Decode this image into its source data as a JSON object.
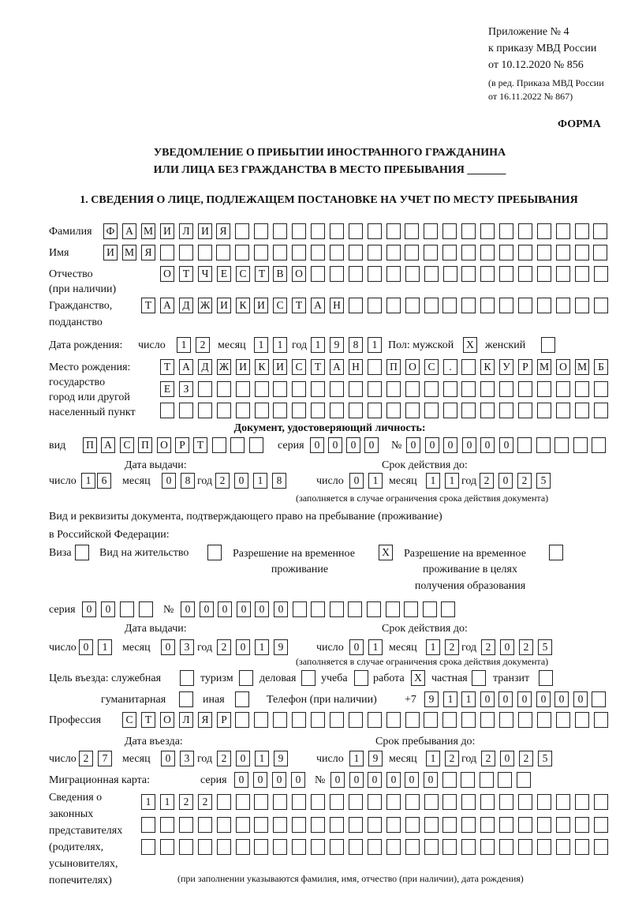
{
  "header": {
    "appendix": "Приложение № 4",
    "order": "к приказу МВД России",
    "order_date": "от 10.12.2020 № 856",
    "revision_1": "(в ред. Приказа МВД России",
    "revision_2": "от 16.11.2022 № 867)",
    "form_label": "ФОРМА",
    "title_1": "УВЕДОМЛЕНИЕ О ПРИБЫТИИ ИНОСТРАННОГО ГРАЖДАНИНА",
    "title_2": "ИЛИ ЛИЦА БЕЗ ГРАЖДАНСТВА В МЕСТО ПРЕБЫВАНИЯ _______",
    "section_1": "1. СВЕДЕНИЯ О ЛИЦЕ, ПОДЛЕЖАЩЕМ ПОСТАНОВКЕ НА УЧЕТ ПО МЕСТУ ПРЕБЫВАНИЯ"
  },
  "labels": {
    "surname": "Фамилия",
    "name": "Имя",
    "patronymic_1": "Отчество",
    "patronymic_2": "(при наличии)",
    "citizenship_1": "Гражданство,",
    "citizenship_2": "подданство",
    "dob": "Дата рождения:",
    "day": "число",
    "month": "месяц",
    "year": "год",
    "sex": "Пол: мужской",
    "female": "женский",
    "pob_1": "Место рождения:",
    "pob_2": "государство",
    "pob_3": "город или другой",
    "pob_4": "населенный пункт",
    "id_doc": "Документ, удостоверяющий личность:",
    "kind": "вид",
    "series": "серия",
    "number": "№",
    "issue_date": "Дата выдачи:",
    "valid_until": "Срок действия до:",
    "validity_note": "(заполняется в случае ограничения срока действия документа)",
    "stay_doc_1": "Вид и реквизиты документа, подтверждающего право на пребывание (проживание)",
    "stay_doc_2": "в Российской Федерации:",
    "visa": "Виза",
    "residence": "Вид на жительство",
    "temp_res_1": "Разрешение на временное",
    "temp_res_2": "проживание",
    "temp_edu_1": "Разрешение на временное",
    "temp_edu_2": "проживание в целях",
    "temp_edu_3": "получения образования",
    "purpose": "Цель въезда: служебная",
    "tourism": "туризм",
    "business": "деловая",
    "study": "учеба",
    "work": "работа",
    "private": "частная",
    "transit": "транзит",
    "humanitarian": "гуманитарная",
    "other": "иная",
    "phone": "Телефон (при наличии)",
    "phone_prefix": "+7",
    "profession": "Профессия",
    "entry_date": "Дата въезда:",
    "stay_until": "Срок пребывания до:",
    "migration_card": "Миграционная карта:",
    "rep_1": "Сведения о",
    "rep_2": "законных",
    "rep_3": "представителях",
    "rep_4": "(родителях,",
    "rep_5": "усыновителях,",
    "rep_6": "попечителях)",
    "rep_note": "(при заполнении указываются фамилия, имя, отчество (при наличии), дата рождения)"
  },
  "values": {
    "surname": "ФАМИЛИЯ",
    "name": "ИМЯ",
    "patronymic": "ОТЧЕСТВО",
    "citizenship": "ТАДЖИКИСТАН",
    "dob_day": "12",
    "dob_month": "11",
    "dob_year": "1981",
    "sex_male": "X",
    "sex_female": "",
    "pob_rows": [
      "ТАДЖИКИСТАН ПОС. КУРМОМБ",
      "ЕЗ",
      ""
    ],
    "id_kind": "ПАСПОРТ",
    "id_series": "0000",
    "id_number": "000000",
    "id_issue_day": "16",
    "id_issue_month": "08",
    "id_issue_year": "2018",
    "id_valid_day": "01",
    "id_valid_month": "11",
    "id_valid_year": "2025",
    "visa": "",
    "residence": "",
    "temp_res": "X",
    "temp_edu": "",
    "stay_series": "00",
    "stay_number": "000000",
    "stay_issue_day": "01",
    "stay_issue_month": "03",
    "stay_issue_year": "2019",
    "stay_valid_day": "01",
    "stay_valid_month": "12",
    "stay_valid_year": "2025",
    "purpose_official": "",
    "purpose_tourism": "",
    "purpose_business": "",
    "purpose_study": "",
    "purpose_work": "X",
    "purpose_private": "",
    "purpose_transit": "",
    "purpose_humanitarian": "",
    "purpose_other": "",
    "phone": "911000000",
    "profession": "СТОЛЯР",
    "entry_day": "27",
    "entry_month": "03",
    "entry_year": "2019",
    "stay_until_day": "19",
    "stay_until_month": "12",
    "stay_until_year": "2025",
    "mc_series": "0000",
    "mc_number": "000000",
    "rep_rows": [
      "1122",
      "",
      ""
    ]
  }
}
